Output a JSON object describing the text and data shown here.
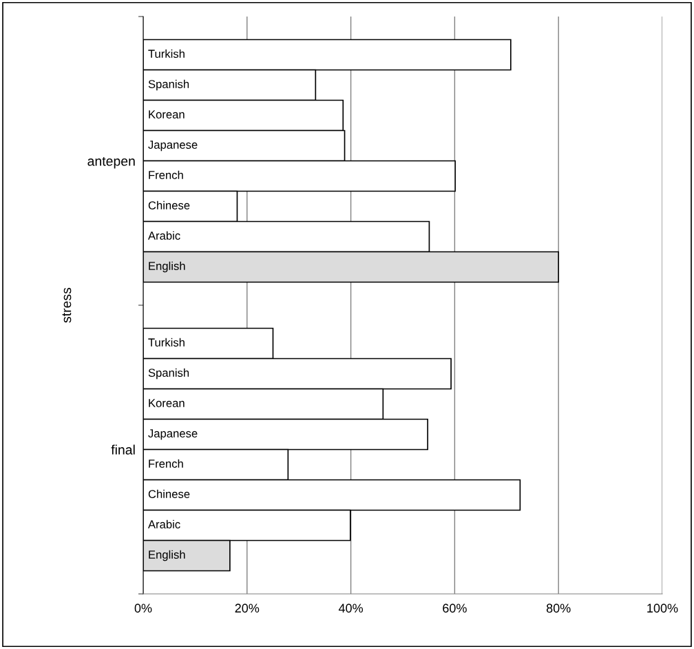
{
  "chart_data": {
    "type": "bar",
    "orientation": "horizontal",
    "ylabel": "stress",
    "categories": [
      "antepen",
      "final"
    ],
    "series": [
      {
        "name": "Turkish",
        "color": "#ffffff",
        "values": [
          70.8,
          25.0
        ]
      },
      {
        "name": "Spanish",
        "color": "#ffffff",
        "values": [
          33.2,
          59.3
        ]
      },
      {
        "name": "Korean",
        "color": "#ffffff",
        "values": [
          38.5,
          46.2
        ]
      },
      {
        "name": "Japanese",
        "color": "#ffffff",
        "values": [
          38.8,
          54.8
        ]
      },
      {
        "name": "French",
        "color": "#ffffff",
        "values": [
          60.1,
          27.9
        ]
      },
      {
        "name": "Chinese",
        "color": "#ffffff",
        "values": [
          18.1,
          72.6
        ]
      },
      {
        "name": "Arabic",
        "color": "#ffffff",
        "values": [
          55.1,
          39.9
        ]
      },
      {
        "name": "English",
        "color": "#dcdcdc",
        "values": [
          80.0,
          16.7
        ]
      }
    ],
    "xlim": [
      0,
      100
    ],
    "xticks": [
      {
        "value": 0,
        "label": "0%"
      },
      {
        "value": 20,
        "label": "20%"
      },
      {
        "value": 40,
        "label": "40%"
      },
      {
        "value": 60,
        "label": "60%"
      },
      {
        "value": 80,
        "label": "80%"
      },
      {
        "value": 100,
        "label": "100%"
      }
    ],
    "grid": "x",
    "legend": false
  }
}
